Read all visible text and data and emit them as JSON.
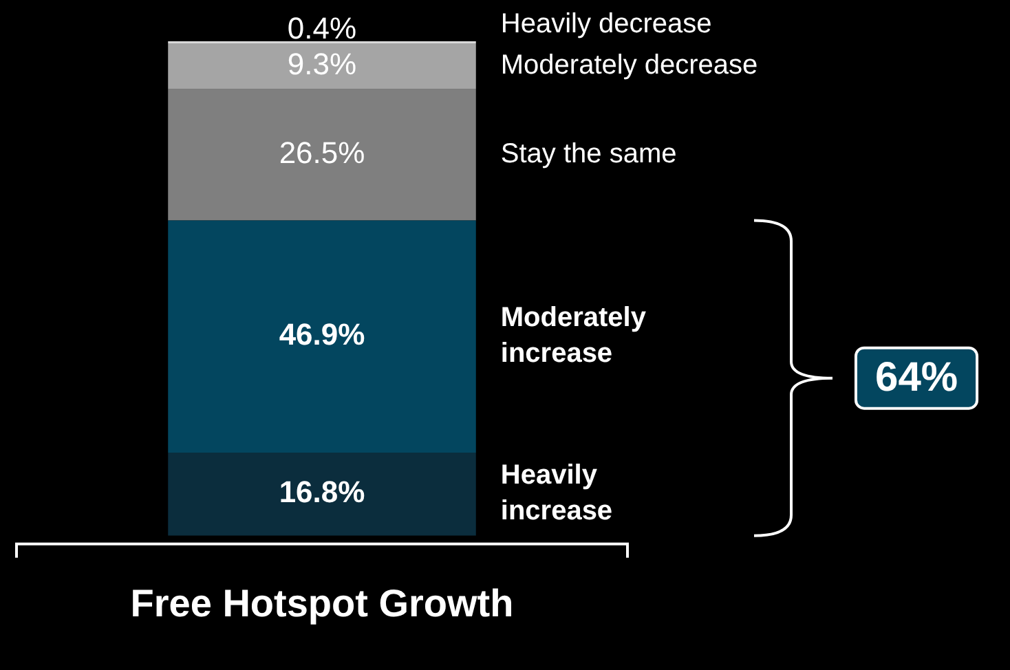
{
  "chart_data": {
    "type": "bar",
    "stacked": true,
    "categories": [
      "Free Hotspot Growth"
    ],
    "series": [
      {
        "name": "Heavily increase",
        "color": "#0b2d3d",
        "values": [
          16.8
        ],
        "value_labels": [
          "16.8%"
        ]
      },
      {
        "name": "Moderately increase",
        "color": "#03465f",
        "values": [
          46.9
        ],
        "value_labels": [
          "46.9%"
        ]
      },
      {
        "name": "Stay the same",
        "color": "#7f7f7f",
        "values": [
          26.5
        ],
        "value_labels": [
          "26.5%"
        ]
      },
      {
        "name": "Moderately decrease",
        "color": "#a5a5a5",
        "values": [
          9.3
        ],
        "value_labels": [
          "9.3%"
        ]
      },
      {
        "name": "Heavily decrease",
        "color": "#d9d9d9",
        "values": [
          0.4
        ],
        "value_labels": [
          "0.4%"
        ]
      }
    ],
    "annotations": [
      "64%"
    ]
  }
}
